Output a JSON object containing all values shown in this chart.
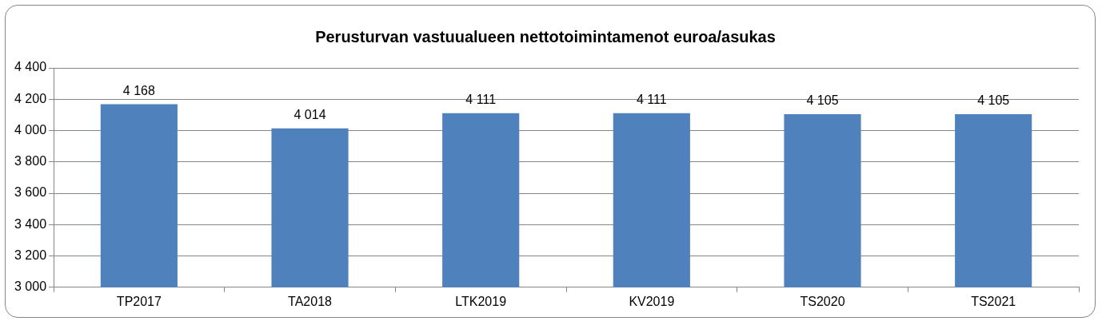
{
  "chart_data": {
    "type": "bar",
    "title": "Perusturvan vastuualueen nettotoimintamenot euroa/asukas",
    "categories": [
      "TP2017",
      "TA2018",
      "LTK2019",
      "KV2019",
      "TS2020",
      "TS2021"
    ],
    "values": [
      4168,
      4014,
      4111,
      4111,
      4105,
      4105
    ],
    "value_labels": [
      "4 168",
      "4 014",
      "4 111",
      "4 111",
      "4 105",
      "4 105"
    ],
    "color": "#4f81bd",
    "ylim": [
      3000,
      4400
    ],
    "yticks": [
      {
        "value": 3000,
        "label": "3 000"
      },
      {
        "value": 3200,
        "label": "3 200"
      },
      {
        "value": 3400,
        "label": "3 400"
      },
      {
        "value": 3600,
        "label": "3 600"
      },
      {
        "value": 3800,
        "label": "3 800"
      },
      {
        "value": 4000,
        "label": "4 000"
      },
      {
        "value": 4200,
        "label": "4 200"
      },
      {
        "value": 4400,
        "label": "4 400"
      }
    ],
    "grid": "y",
    "legend": false
  }
}
